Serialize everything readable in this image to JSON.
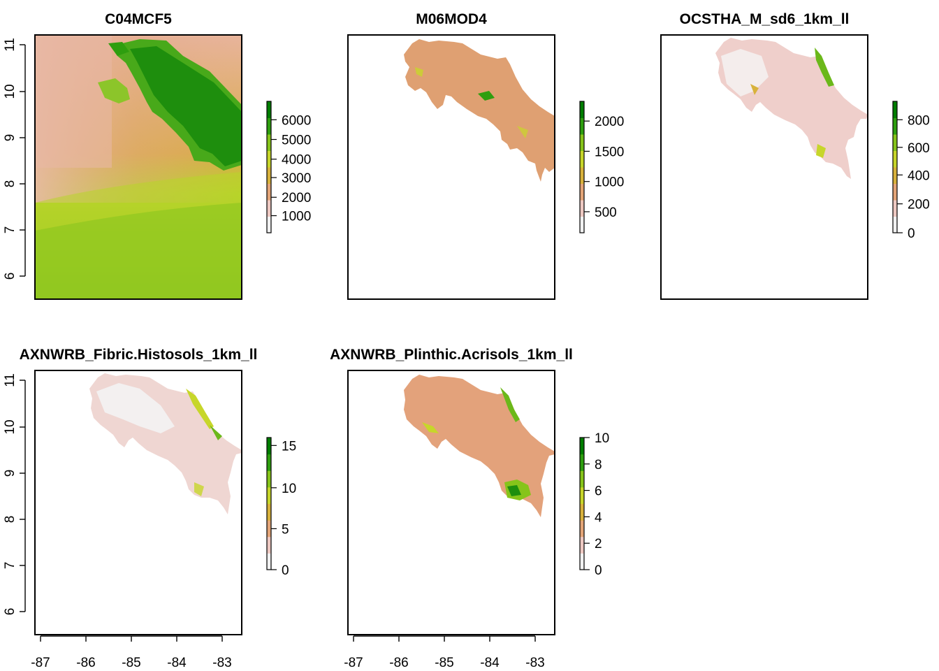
{
  "ramp": [
    "#F2F2F2",
    "#EEC9C2",
    "#E4A578",
    "#D8B23C",
    "#C7D62A",
    "#86C41A",
    "#2E9E0F",
    "#007D00"
  ],
  "land_fill": {
    "C04MCF5": "#E1A070",
    "M06MOD4": "#DFA072",
    "OCSTHA": "#EFCFCB",
    "Histosols": "#EFD6D2",
    "Acrisols": "#E3A27B"
  },
  "panels": [
    {
      "id": "C04MCF5",
      "title": "C04MCF5",
      "legend_ticks": [
        "6000",
        "5000",
        "4000",
        "3000",
        "2000",
        "1000"
      ],
      "y_ticks": [
        "11",
        "10",
        "9",
        "8",
        "7",
        "6"
      ],
      "x_ticks": []
    },
    {
      "id": "M06MOD4",
      "title": "M06MOD4",
      "legend_ticks": [
        "2000",
        "1500",
        "1000",
        "500"
      ],
      "y_ticks": [],
      "x_ticks": []
    },
    {
      "id": "OCSTHA",
      "title": "OCSTHA_M_sd6_1km_ll",
      "legend_ticks": [
        "800",
        "600",
        "400",
        "200",
        "0"
      ],
      "y_ticks": [],
      "x_ticks": []
    },
    {
      "id": "Histosols",
      "title": "AXNWRB_Fibric.Histosols_1km_ll",
      "legend_ticks": [
        "15",
        "10",
        "5",
        "0"
      ],
      "y_ticks": [
        "11",
        "10",
        "9",
        "8",
        "7",
        "6"
      ],
      "x_ticks": [
        "-87",
        "-86",
        "-85",
        "-84",
        "-83"
      ]
    },
    {
      "id": "Acrisols",
      "title": "AXNWRB_Plinthic.Acrisols_1km_ll",
      "legend_ticks": [
        "10",
        "8",
        "6",
        "4",
        "2",
        "0"
      ],
      "y_ticks": [],
      "x_ticks": [
        "-87",
        "-86",
        "-85",
        "-84",
        "-83"
      ]
    }
  ]
}
